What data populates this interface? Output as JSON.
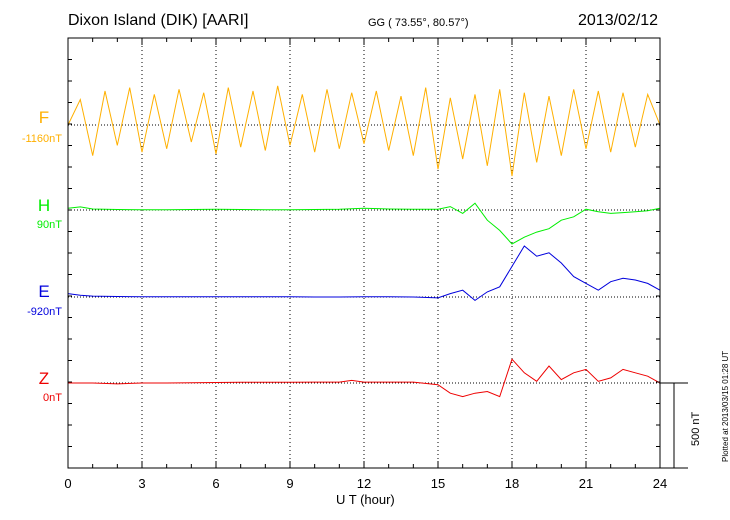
{
  "header": {
    "station": "Dixon Island (DIK)  [AARI]",
    "coords": "GG ( 73.55°,  80.57°)",
    "date": "2013/02/12"
  },
  "plotted_note": "Plotted at 2013/03/15 01:28 UT",
  "scale_bar_label": "500 nT",
  "colors": {
    "F": "#ffb000",
    "H": "#00ee00",
    "E": "#0000dd",
    "Z": "#ee0000"
  },
  "chart_data": {
    "type": "line",
    "xlabel": "U T (hour)",
    "xlim": [
      0,
      24
    ],
    "xticks": [
      "0",
      "3",
      "6",
      "9",
      "12",
      "15",
      "18",
      "21",
      "24"
    ],
    "scale_bar_nT": 500,
    "grid": true,
    "series": [
      {
        "name": "F",
        "offset_label": "-1160nT",
        "color": "#ffb000",
        "baseline_nT": -1160,
        "x": [
          0,
          0.5,
          1,
          1.5,
          2,
          2.5,
          3,
          3.5,
          4,
          4.5,
          5,
          5.5,
          6,
          6.5,
          7,
          7.5,
          8,
          8.5,
          9,
          9.5,
          10,
          10.5,
          11,
          11.5,
          12,
          12.5,
          13,
          13.5,
          14,
          14.5,
          15,
          15.5,
          16,
          16.5,
          17,
          17.5,
          18,
          18.5,
          19,
          19.5,
          20,
          20.5,
          21,
          21.5,
          22,
          22.5,
          23,
          23.5,
          24
        ],
        "values": [
          0,
          150,
          -180,
          200,
          -120,
          220,
          -160,
          180,
          -140,
          210,
          -100,
          190,
          -170,
          220,
          -130,
          200,
          -150,
          230,
          -120,
          180,
          -160,
          210,
          -140,
          190,
          -110,
          200,
          -150,
          170,
          -180,
          220,
          -260,
          160,
          -200,
          180,
          -240,
          210,
          -300,
          190,
          -220,
          170,
          -180,
          210,
          -140,
          200,
          -160,
          190,
          -130,
          180,
          0
        ]
      },
      {
        "name": "H",
        "offset_label": "90nT",
        "color": "#00ee00",
        "baseline_nT": 90,
        "x": [
          0,
          0.5,
          1,
          1.5,
          2,
          3,
          4,
          5,
          6,
          7,
          8,
          9,
          10,
          11,
          12,
          13,
          14,
          15,
          15.5,
          16,
          16.5,
          17,
          17.5,
          18,
          18.5,
          19,
          19.5,
          20,
          20.5,
          21,
          21.5,
          22,
          22.5,
          23,
          23.5,
          24
        ],
        "values": [
          10,
          18,
          6,
          4,
          3,
          2,
          2,
          3,
          4,
          3,
          2,
          1,
          3,
          4,
          10,
          6,
          4,
          5,
          20,
          -20,
          40,
          -60,
          -120,
          -200,
          -160,
          -130,
          -110,
          -60,
          -40,
          5,
          -10,
          -20,
          -15,
          -10,
          -5,
          10
        ]
      },
      {
        "name": "E",
        "offset_label": "-920nT",
        "color": "#0000dd",
        "baseline_nT": -920,
        "x": [
          0,
          0.5,
          1,
          2,
          3,
          4,
          5,
          6,
          7,
          8,
          9,
          10,
          11,
          12,
          13,
          14,
          15,
          15.5,
          16,
          16.5,
          17,
          17.5,
          18,
          18.5,
          19,
          19.5,
          20,
          20.5,
          21,
          21.5,
          22,
          22.5,
          23,
          23.5,
          24
        ],
        "values": [
          20,
          10,
          5,
          3,
          2,
          2,
          2,
          1,
          2,
          1,
          1,
          0,
          0,
          2,
          1,
          0,
          -5,
          20,
          40,
          -20,
          30,
          60,
          180,
          300,
          240,
          260,
          200,
          120,
          80,
          40,
          90,
          110,
          100,
          80,
          40
        ]
      },
      {
        "name": "Z",
        "offset_label": "0nT",
        "color": "#ee0000",
        "baseline_nT": 0,
        "x": [
          0,
          1,
          2,
          3,
          4,
          5,
          6,
          7,
          8,
          9,
          10,
          11,
          11.5,
          12,
          13,
          14,
          15,
          15.5,
          16,
          16.5,
          17,
          17.5,
          18,
          18.5,
          19,
          19.5,
          20,
          20.5,
          21,
          21.5,
          22,
          22.5,
          23,
          23.5,
          24
        ],
        "values": [
          0,
          0,
          -5,
          0,
          0,
          2,
          3,
          4,
          4,
          4,
          5,
          5,
          15,
          5,
          5,
          5,
          -10,
          -60,
          -80,
          -60,
          -50,
          -80,
          140,
          60,
          10,
          100,
          20,
          60,
          80,
          10,
          30,
          80,
          60,
          40,
          0
        ]
      }
    ]
  }
}
